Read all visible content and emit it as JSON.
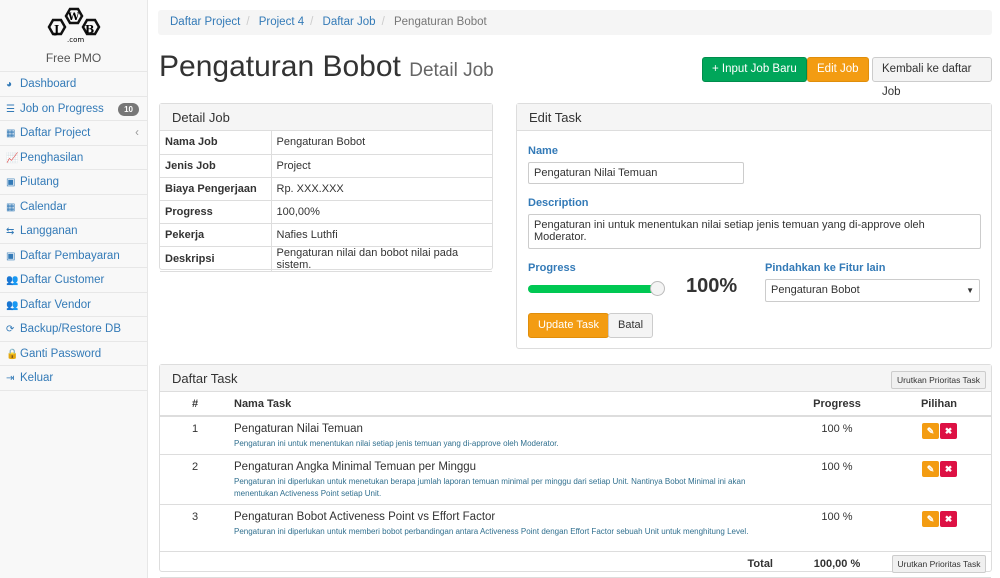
{
  "sidebar": {
    "logo_text": "JWB",
    "logo_sub": ".com",
    "app_name": "Free PMO",
    "items": [
      {
        "label": "Dashboard",
        "icon": "dashboard-icon",
        "glyph": "◕"
      },
      {
        "label": "Job on Progress",
        "icon": "tasks-icon",
        "glyph": "☰",
        "badge": "10"
      },
      {
        "label": "Daftar Project",
        "icon": "table-icon",
        "glyph": "▦",
        "chevron": "‹"
      },
      {
        "label": "Penghasilan",
        "icon": "line-chart-icon",
        "glyph": "📈"
      },
      {
        "label": "Piutang",
        "icon": "money-icon",
        "glyph": "▣"
      },
      {
        "label": "Calendar",
        "icon": "calendar-icon",
        "glyph": "▦"
      },
      {
        "label": "Langganan",
        "icon": "retweet-icon",
        "glyph": "⇆"
      },
      {
        "label": "Daftar Pembayaran",
        "icon": "money-icon",
        "glyph": "▣"
      },
      {
        "label": "Daftar Customer",
        "icon": "users-icon",
        "glyph": "👥"
      },
      {
        "label": "Daftar Vendor",
        "icon": "users-icon",
        "glyph": "👥"
      },
      {
        "label": "Backup/Restore DB",
        "icon": "refresh-icon",
        "glyph": "⟳"
      },
      {
        "label": "Ganti Password",
        "icon": "lock-icon",
        "glyph": "🔒"
      },
      {
        "label": "Keluar",
        "icon": "sign-out-icon",
        "glyph": "⇥"
      }
    ]
  },
  "breadcrumb": [
    "Daftar Project",
    "Project 4",
    "Daftar Job",
    "Pengaturan Bobot"
  ],
  "header": {
    "title": "Pengaturan Bobot",
    "subtitle": "Detail Job",
    "btn_new": "+ Input Job Baru",
    "btn_edit": "Edit Job",
    "btn_back": "Kembali ke daftar Job"
  },
  "detail": {
    "title": "Detail Job",
    "rows": [
      {
        "k": "Nama Job",
        "v": "Pengaturan Bobot"
      },
      {
        "k": "Jenis Job",
        "v": "Project"
      },
      {
        "k": "Biaya Pengerjaan",
        "v": "Rp. XXX.XXX"
      },
      {
        "k": "Progress",
        "v": "100,00%"
      },
      {
        "k": "Pekerja",
        "v": "Nafies Luthfi"
      },
      {
        "k": "Deskripsi",
        "v": "Pengaturan nilai dan bobot nilai pada sistem."
      }
    ]
  },
  "edit": {
    "title": "Edit Task",
    "name_label": "Name",
    "name_value": "Pengaturan Nilai Temuan",
    "desc_label": "Description",
    "desc_value": "Pengaturan ini untuk menentukan nilai setiap jenis temuan yang di-approve oleh Moderator.",
    "progress_label": "Progress",
    "progress_value": 100,
    "progress_text": "100%",
    "move_label": "Pindahkan ke Fitur lain",
    "move_value": "Pengaturan Bobot",
    "update": "Update Task",
    "cancel": "Batal",
    "accent": "#00c853"
  },
  "tasks": {
    "title": "Daftar Task",
    "sort_btn": "Urutkan Prioritas Task",
    "cols": [
      "#",
      "Nama Task",
      "Progress",
      "Pilihan"
    ],
    "rows": [
      {
        "no": "1",
        "name": "Pengaturan Nilai Temuan",
        "desc": "Pengaturan ini untuk menentukan nilai setiap jenis temuan yang di-approve oleh Moderator.",
        "progress": "100 %"
      },
      {
        "no": "2",
        "name": "Pengaturan Angka Minimal Temuan per Minggu",
        "desc": "Pengaturan ini diperlukan untuk menetukan berapa jumlah laporan temuan minimal per minggu dari setiap Unit. Nantinya Bobot Minimal ini akan menentukan Activeness Point setiap Unit.",
        "progress": "100 %"
      },
      {
        "no": "3",
        "name": "Pengaturan Bobot Activeness Point vs Effort Factor",
        "desc": "Pengaturan ini diperlukan untuk memberi bobot perbandingan antara Activeness Point dengan Effort Factor sebuah Unit untuk menghitung Level.",
        "progress": "100 %"
      }
    ],
    "total_label": "Total",
    "total_value": "100,00 %"
  }
}
